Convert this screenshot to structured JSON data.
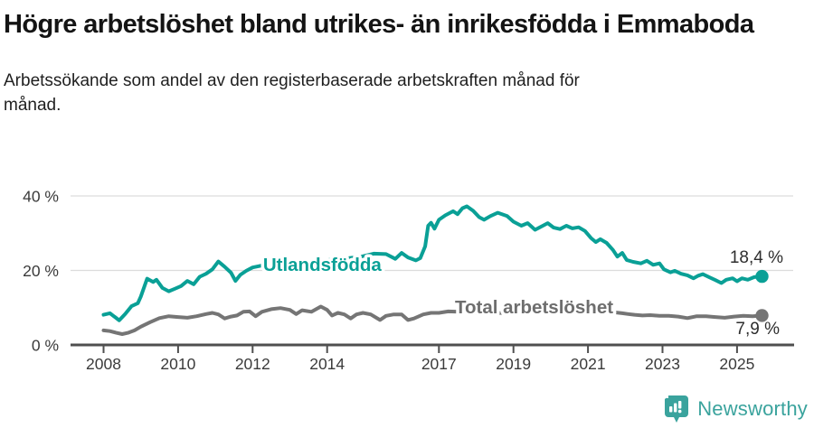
{
  "header": {
    "title": "Högre arbetslöshet bland utrikes- än inrikesfödda i Emmaboda",
    "subtitle": "Arbetssökande som andel av den registerbaserade arbetskraften månad för månad."
  },
  "footer": {
    "brand": "Newsworthy",
    "logo_icon": "bar-chart-speech-bubble-icon"
  },
  "colors": {
    "foreign_born_line": "#0aa096",
    "total_line": "#757575",
    "total_label": "#6e6e6e",
    "annotation_text": "#2e2e2e",
    "axis": "#4f4f4f",
    "tick_text": "#3b3b3b",
    "gridline": "#dcdcdc",
    "brand_teal": "#3aa39d",
    "title_text": "#141414"
  },
  "chart_data": {
    "type": "line",
    "title": "Högre arbetslöshet bland utrikes- än inrikesfödda i Emmaboda",
    "subtitle": "Arbetssökande som andel av den registerbaserade arbetskraften månad för månad.",
    "grid": "horizontal-only",
    "legend_position": "inline-labels",
    "x_axis": {
      "unit": "year",
      "range": [
        2007.85,
        2026.3
      ],
      "ticks": [
        {
          "v": 2008,
          "label": "2008"
        },
        {
          "v": 2010,
          "label": "2010"
        },
        {
          "v": 2012,
          "label": "2012"
        },
        {
          "v": 2014,
          "label": "2014"
        },
        {
          "v": 2017,
          "label": "2017"
        },
        {
          "v": 2019,
          "label": "2019"
        },
        {
          "v": 2021,
          "label": "2021"
        },
        {
          "v": 2023,
          "label": "2023"
        },
        {
          "v": 2025,
          "label": "2025"
        }
      ]
    },
    "y_axis": {
      "unit": "percent",
      "range": [
        0,
        43
      ],
      "ticks": [
        {
          "v": 0,
          "label": "0 %"
        },
        {
          "v": 20,
          "label": "20 %"
        },
        {
          "v": 40,
          "label": "40 %"
        }
      ]
    },
    "series": [
      {
        "name": "Utlandsfödda",
        "color": "#0aa096",
        "inline_label": {
          "text": "Utlandsfödda",
          "x": 2012.28,
          "y": 19.9
        },
        "end_value_label": "18,4 %",
        "end_value": 18.4,
        "points": [
          [
            2008.0,
            8.1
          ],
          [
            2008.17,
            8.5
          ],
          [
            2008.33,
            7.3
          ],
          [
            2008.42,
            6.6
          ],
          [
            2008.58,
            8.3
          ],
          [
            2008.75,
            10.4
          ],
          [
            2008.92,
            11.2
          ],
          [
            2009.0,
            13.0
          ],
          [
            2009.17,
            17.8
          ],
          [
            2009.33,
            16.9
          ],
          [
            2009.42,
            17.5
          ],
          [
            2009.58,
            15.3
          ],
          [
            2009.75,
            14.4
          ],
          [
            2009.92,
            15.1
          ],
          [
            2010.08,
            15.8
          ],
          [
            2010.25,
            17.2
          ],
          [
            2010.42,
            16.3
          ],
          [
            2010.58,
            18.3
          ],
          [
            2010.75,
            19.1
          ],
          [
            2010.92,
            20.3
          ],
          [
            2011.08,
            22.4
          ],
          [
            2011.25,
            21.0
          ],
          [
            2011.42,
            19.4
          ],
          [
            2011.54,
            17.2
          ],
          [
            2011.67,
            18.8
          ],
          [
            2011.83,
            19.9
          ],
          [
            2012.0,
            20.8
          ],
          [
            2012.25,
            21.3
          ],
          [
            2012.58,
            21.6
          ],
          [
            2012.92,
            21.8
          ],
          [
            2013.25,
            22.1
          ],
          [
            2013.58,
            22.4
          ],
          [
            2013.92,
            22.7
          ],
          [
            2014.25,
            23.0
          ],
          [
            2014.58,
            23.3
          ],
          [
            2014.92,
            23.7
          ],
          [
            2015.25,
            24.5
          ],
          [
            2015.58,
            24.4
          ],
          [
            2015.83,
            23.1
          ],
          [
            2016.0,
            24.7
          ],
          [
            2016.17,
            23.5
          ],
          [
            2016.38,
            22.7
          ],
          [
            2016.5,
            23.3
          ],
          [
            2016.63,
            26.5
          ],
          [
            2016.71,
            32.0
          ],
          [
            2016.79,
            32.8
          ],
          [
            2016.88,
            31.2
          ],
          [
            2017.0,
            33.6
          ],
          [
            2017.17,
            34.8
          ],
          [
            2017.38,
            35.9
          ],
          [
            2017.5,
            35.1
          ],
          [
            2017.63,
            36.7
          ],
          [
            2017.75,
            37.2
          ],
          [
            2017.92,
            36.0
          ],
          [
            2018.08,
            34.3
          ],
          [
            2018.21,
            33.6
          ],
          [
            2018.38,
            34.6
          ],
          [
            2018.58,
            35.5
          ],
          [
            2018.83,
            34.6
          ],
          [
            2019.0,
            33.1
          ],
          [
            2019.21,
            32.0
          ],
          [
            2019.38,
            32.7
          ],
          [
            2019.58,
            30.9
          ],
          [
            2019.79,
            32.0
          ],
          [
            2019.92,
            32.7
          ],
          [
            2020.08,
            31.5
          ],
          [
            2020.25,
            31.1
          ],
          [
            2020.42,
            32.0
          ],
          [
            2020.58,
            31.3
          ],
          [
            2020.75,
            31.6
          ],
          [
            2020.92,
            30.6
          ],
          [
            2021.08,
            28.7
          ],
          [
            2021.21,
            27.6
          ],
          [
            2021.33,
            28.4
          ],
          [
            2021.5,
            27.4
          ],
          [
            2021.67,
            25.5
          ],
          [
            2021.79,
            23.7
          ],
          [
            2021.92,
            24.7
          ],
          [
            2022.04,
            22.8
          ],
          [
            2022.21,
            22.3
          ],
          [
            2022.42,
            21.9
          ],
          [
            2022.58,
            22.6
          ],
          [
            2022.75,
            21.5
          ],
          [
            2022.92,
            21.9
          ],
          [
            2023.04,
            20.3
          ],
          [
            2023.21,
            19.5
          ],
          [
            2023.33,
            19.9
          ],
          [
            2023.5,
            19.1
          ],
          [
            2023.67,
            18.7
          ],
          [
            2023.83,
            17.9
          ],
          [
            2023.96,
            18.6
          ],
          [
            2024.08,
            19.0
          ],
          [
            2024.25,
            18.2
          ],
          [
            2024.42,
            17.4
          ],
          [
            2024.58,
            16.6
          ],
          [
            2024.71,
            17.5
          ],
          [
            2024.88,
            17.9
          ],
          [
            2025.0,
            17.1
          ],
          [
            2025.13,
            17.9
          ],
          [
            2025.29,
            17.5
          ],
          [
            2025.46,
            18.2
          ],
          [
            2025.67,
            18.4
          ]
        ]
      },
      {
        "name": "Total arbetslöshet",
        "color": "#757575",
        "label_color": "#6e6e6e",
        "inline_label": {
          "text": "Total arbetslöshet",
          "x": 2017.43,
          "y": 8.48
        },
        "end_value_label": "7,9 %",
        "end_value": 7.9,
        "points": [
          [
            2008.0,
            3.9
          ],
          [
            2008.17,
            3.7
          ],
          [
            2008.33,
            3.3
          ],
          [
            2008.5,
            2.9
          ],
          [
            2008.67,
            3.3
          ],
          [
            2008.83,
            3.9
          ],
          [
            2009.0,
            4.9
          ],
          [
            2009.25,
            6.1
          ],
          [
            2009.5,
            7.2
          ],
          [
            2009.75,
            7.7
          ],
          [
            2010.0,
            7.5
          ],
          [
            2010.25,
            7.3
          ],
          [
            2010.5,
            7.7
          ],
          [
            2010.75,
            8.3
          ],
          [
            2010.92,
            8.6
          ],
          [
            2011.08,
            8.2
          ],
          [
            2011.25,
            7.1
          ],
          [
            2011.42,
            7.6
          ],
          [
            2011.58,
            7.9
          ],
          [
            2011.75,
            8.9
          ],
          [
            2011.92,
            9.0
          ],
          [
            2012.08,
            7.7
          ],
          [
            2012.25,
            8.9
          ],
          [
            2012.5,
            9.6
          ],
          [
            2012.75,
            9.9
          ],
          [
            2013.0,
            9.4
          ],
          [
            2013.17,
            8.3
          ],
          [
            2013.33,
            9.3
          ],
          [
            2013.58,
            8.9
          ],
          [
            2013.83,
            10.3
          ],
          [
            2014.0,
            9.4
          ],
          [
            2014.13,
            7.9
          ],
          [
            2014.29,
            8.6
          ],
          [
            2014.46,
            8.2
          ],
          [
            2014.63,
            7.1
          ],
          [
            2014.79,
            8.2
          ],
          [
            2014.96,
            8.6
          ],
          [
            2015.17,
            8.2
          ],
          [
            2015.42,
            6.7
          ],
          [
            2015.58,
            7.8
          ],
          [
            2015.79,
            8.2
          ],
          [
            2016.0,
            8.2
          ],
          [
            2016.17,
            6.7
          ],
          [
            2016.33,
            7.1
          ],
          [
            2016.58,
            8.2
          ],
          [
            2016.79,
            8.6
          ],
          [
            2017.0,
            8.6
          ],
          [
            2017.25,
            9.0
          ],
          [
            2017.54,
            8.9
          ],
          [
            2017.92,
            8.6
          ],
          [
            2018.33,
            8.5
          ],
          [
            2018.75,
            8.6
          ],
          [
            2019.17,
            8.8
          ],
          [
            2019.58,
            8.9
          ],
          [
            2020.0,
            9.3
          ],
          [
            2020.33,
            9.8
          ],
          [
            2020.75,
            9.5
          ],
          [
            2021.17,
            9.2
          ],
          [
            2021.58,
            8.9
          ],
          [
            2021.92,
            8.5
          ],
          [
            2022.08,
            8.3
          ],
          [
            2022.25,
            8.1
          ],
          [
            2022.46,
            7.9
          ],
          [
            2022.67,
            8.0
          ],
          [
            2022.92,
            7.8
          ],
          [
            2023.17,
            7.8
          ],
          [
            2023.42,
            7.6
          ],
          [
            2023.67,
            7.2
          ],
          [
            2023.92,
            7.7
          ],
          [
            2024.17,
            7.7
          ],
          [
            2024.42,
            7.5
          ],
          [
            2024.67,
            7.3
          ],
          [
            2024.92,
            7.6
          ],
          [
            2025.17,
            7.8
          ],
          [
            2025.42,
            7.7
          ],
          [
            2025.67,
            7.9
          ]
        ]
      }
    ]
  }
}
